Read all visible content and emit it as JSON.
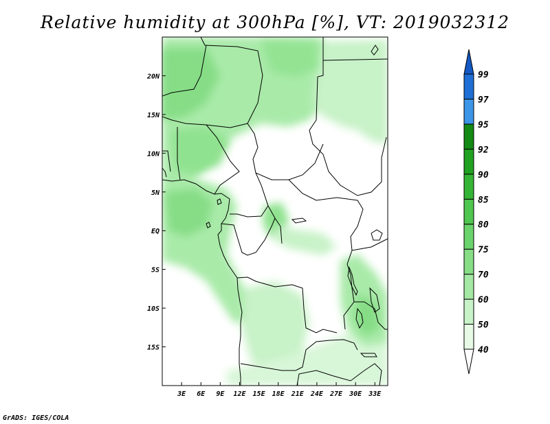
{
  "title": "Relative humidity at 300hPa [%], VT: 2019032312",
  "footer": "GrADS: IGES/COLA",
  "map": {
    "lon_range": [
      0,
      35
    ],
    "lat_range": [
      -20,
      25
    ],
    "x_ticks": [
      {
        "lon": 3,
        "label": "3E"
      },
      {
        "lon": 6,
        "label": "6E"
      },
      {
        "lon": 9,
        "label": "9E"
      },
      {
        "lon": 12,
        "label": "12E"
      },
      {
        "lon": 15,
        "label": "15E"
      },
      {
        "lon": 18,
        "label": "18E"
      },
      {
        "lon": 21,
        "label": "21E"
      },
      {
        "lon": 24,
        "label": "24E"
      },
      {
        "lon": 27,
        "label": "27E"
      },
      {
        "lon": 30,
        "label": "30E"
      },
      {
        "lon": 33,
        "label": "33E"
      }
    ],
    "y_ticks": [
      {
        "lat": 20,
        "label": "20N"
      },
      {
        "lat": 15,
        "label": "15N"
      },
      {
        "lat": 10,
        "label": "10N"
      },
      {
        "lat": 5,
        "label": "5N"
      },
      {
        "lat": 0,
        "label": "EQ"
      },
      {
        "lat": -5,
        "label": "5S"
      },
      {
        "lat": -10,
        "label": "10S"
      },
      {
        "lat": -15,
        "label": "15S"
      }
    ]
  },
  "colorbar": {
    "levels": [
      "40",
      "50",
      "60",
      "70",
      "75",
      "80",
      "85",
      "90",
      "92",
      "95",
      "97",
      "99"
    ],
    "colors": [
      "#ffffff",
      "#e6fae6",
      "#c8f2c8",
      "#a4e8a4",
      "#86dd86",
      "#6bd36b",
      "#4fc64f",
      "#35b535",
      "#21a121",
      "#138a13",
      "#3c95e6",
      "#1f6fd6",
      "#1458c4"
    ]
  }
}
